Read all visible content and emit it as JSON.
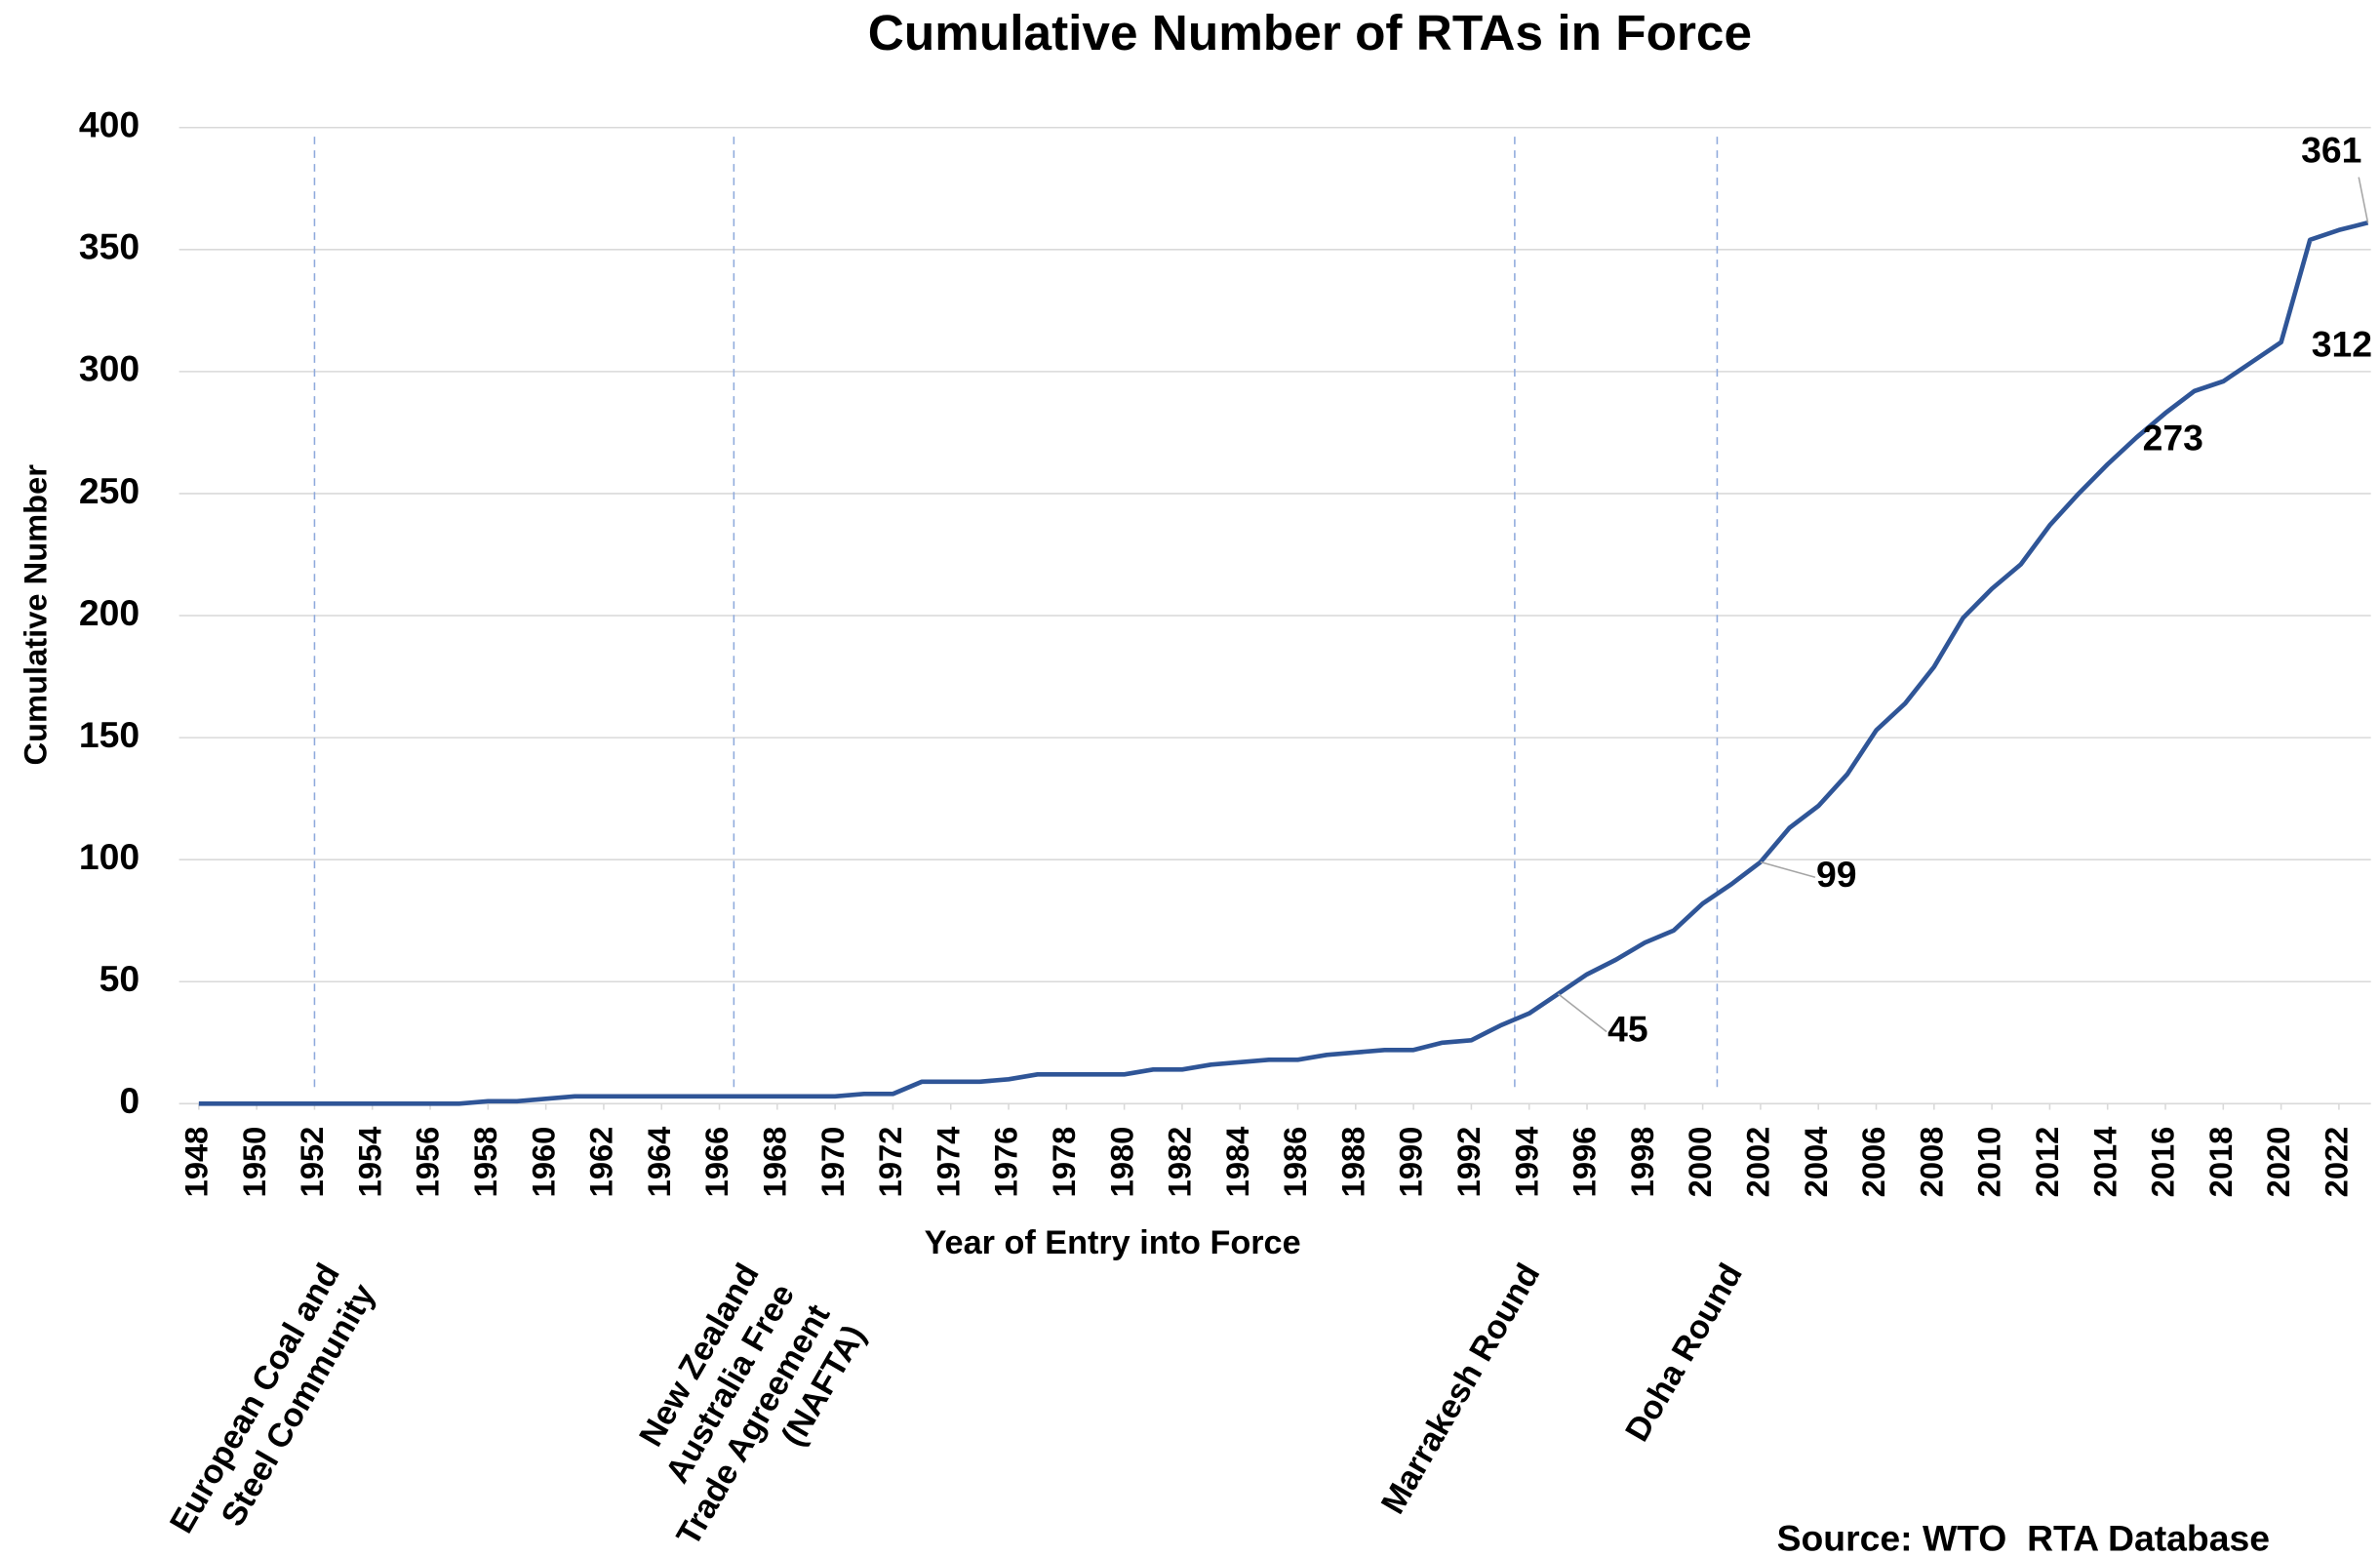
{
  "chart_data": {
    "type": "line",
    "title": "Cumulative Number of RTAs in Force",
    "x_label": "Year of Entry into Force",
    "y_label": "Cumulative Number",
    "source": "Source: WTO  RTA Database",
    "x": [
      1948,
      1949,
      1950,
      1951,
      1952,
      1953,
      1954,
      1955,
      1956,
      1957,
      1958,
      1959,
      1960,
      1961,
      1962,
      1963,
      1964,
      1965,
      1966,
      1967,
      1968,
      1969,
      1970,
      1971,
      1972,
      1973,
      1974,
      1975,
      1976,
      1977,
      1978,
      1979,
      1980,
      1981,
      1982,
      1983,
      1984,
      1985,
      1986,
      1987,
      1988,
      1989,
      1990,
      1991,
      1992,
      1993,
      1994,
      1995,
      1996,
      1997,
      1998,
      1999,
      2000,
      2001,
      2002,
      2003,
      2004,
      2005,
      2006,
      2007,
      2008,
      2009,
      2010,
      2011,
      2012,
      2013,
      2014,
      2015,
      2016,
      2017,
      2018,
      2019,
      2020,
      2021,
      2022,
      2023
    ],
    "series": [
      {
        "name": "Cumulative Number",
        "color": "#2f5597",
        "values": [
          0,
          0,
          0,
          0,
          0,
          0,
          0,
          0,
          0,
          0,
          1,
          1,
          2,
          3,
          3,
          3,
          3,
          3,
          3,
          3,
          3,
          3,
          3,
          4,
          4,
          9,
          9,
          9,
          10,
          12,
          12,
          12,
          12,
          14,
          14,
          16,
          17,
          18,
          18,
          20,
          21,
          22,
          22,
          25,
          26,
          32,
          37,
          45,
          53,
          59,
          66,
          71,
          82,
          90,
          99,
          113,
          122,
          135,
          153,
          164,
          179,
          199,
          211,
          221,
          237,
          250,
          262,
          273,
          283,
          292,
          296,
          304,
          312,
          354,
          358,
          361
        ]
      }
    ],
    "labeled_indices": [
      47,
      54,
      67,
      72,
      75
    ],
    "xlim": [
      1948,
      2023
    ],
    "xticks": [
      1948,
      1950,
      1952,
      1954,
      1956,
      1958,
      1960,
      1962,
      1964,
      1966,
      1968,
      1970,
      1972,
      1974,
      1976,
      1978,
      1980,
      1982,
      1984,
      1986,
      1988,
      1990,
      1992,
      1994,
      1996,
      1998,
      2000,
      2002,
      2004,
      2006,
      2008,
      2010,
      2012,
      2014,
      2016,
      2018,
      2020,
      2022
    ],
    "ylim": [
      0,
      400
    ],
    "yticks": [
      0,
      50,
      100,
      150,
      200,
      250,
      300,
      350,
      400
    ],
    "grid": true,
    "annotations": [
      {
        "x": 1952,
        "lines": [
          "European Coal and",
          "Steel Community"
        ]
      },
      {
        "x": 1966.5,
        "lines": [
          "New Zealand",
          "Australia Free",
          "Trade Agreement",
          "(NAFTA)"
        ]
      },
      {
        "x": 1993.5,
        "lines": [
          "Marrakesh Round"
        ]
      },
      {
        "x": 2000.5,
        "lines": [
          "Doha Round"
        ]
      }
    ]
  }
}
